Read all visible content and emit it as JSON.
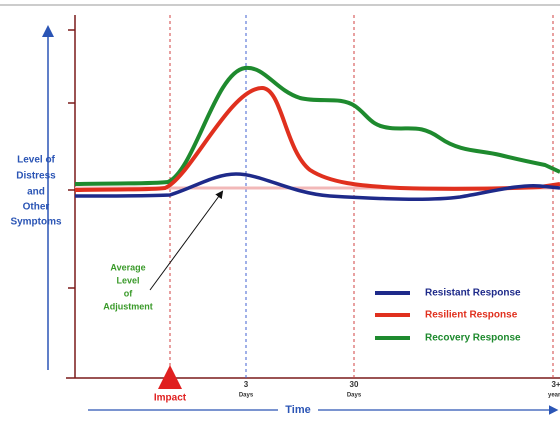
{
  "y_label": [
    "Level of",
    "Distress",
    "and",
    "Other",
    "Symptoms"
  ],
  "annotation": [
    "Average",
    "Level",
    "of",
    "Adjustment"
  ],
  "legend": [
    "Resistant Response",
    "Resilient Response",
    "Recovery Response"
  ],
  "x_labels": {
    "impact": "Impact",
    "ticks": [
      {
        "value": "3",
        "unit": "Days"
      },
      {
        "value": "30",
        "unit": "Days"
      },
      {
        "value": "3+",
        "unit": "years"
      }
    ],
    "axis_title": "Time"
  }
}
